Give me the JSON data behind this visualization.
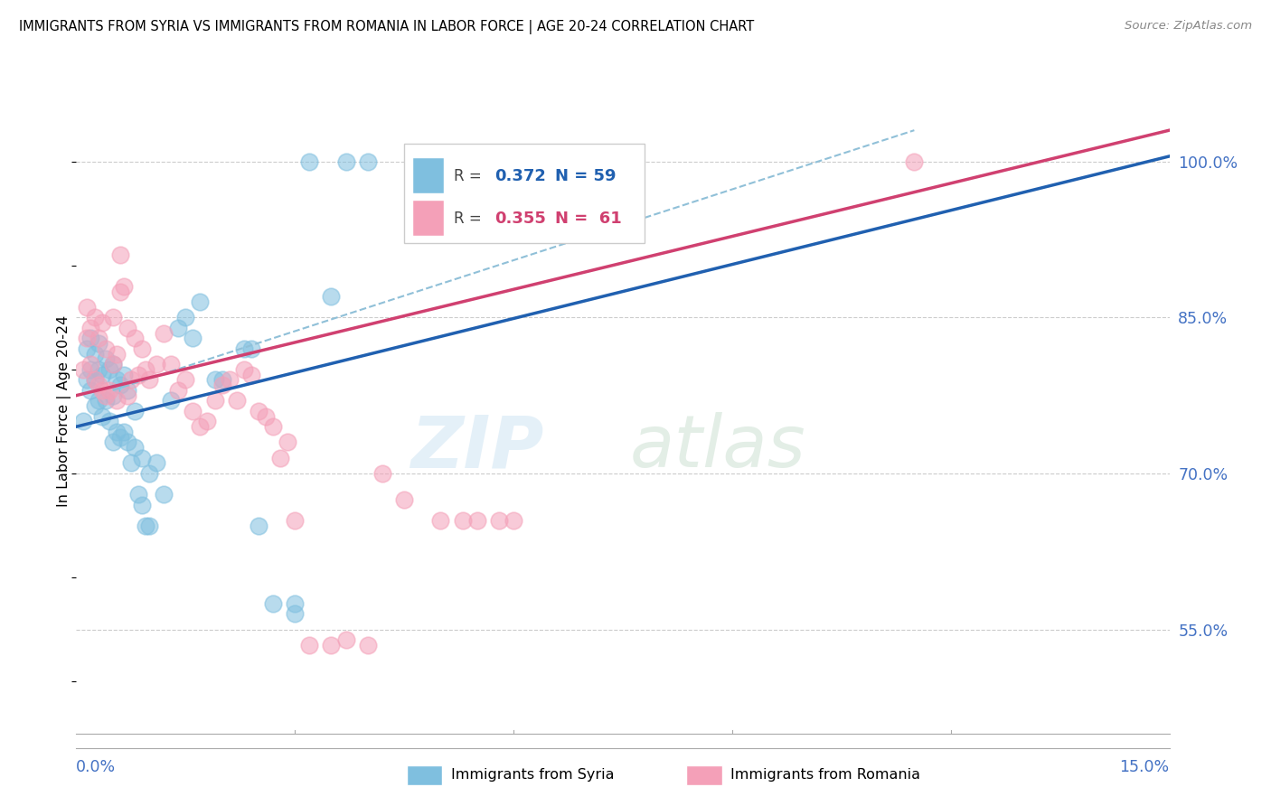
{
  "title": "IMMIGRANTS FROM SYRIA VS IMMIGRANTS FROM ROMANIA IN LABOR FORCE | AGE 20-24 CORRELATION CHART",
  "source": "Source: ZipAtlas.com",
  "ylabel": "In Labor Force | Age 20-24",
  "right_yticks": [
    55.0,
    70.0,
    85.0,
    100.0
  ],
  "xmin": 0.0,
  "xmax": 15.0,
  "ymin": 45.0,
  "ymax": 107.0,
  "R_syria": 0.372,
  "N_syria": 59,
  "R_romania": 0.355,
  "N_romania": 61,
  "color_syria": "#7fbfdf",
  "color_romania": "#f4a0b8",
  "color_syria_line": "#2060b0",
  "color_romania_line": "#d04070",
  "color_dashed": "#90c0d8",
  "legend_label_syria": "Immigrants from Syria",
  "legend_label_romania": "Immigrants from Romania",
  "axis_color": "#4472c4",
  "syria_line_x0": 0.0,
  "syria_line_y0": 74.5,
  "syria_line_x1": 15.0,
  "syria_line_y1": 100.5,
  "romania_line_x0": 0.0,
  "romania_line_y0": 77.5,
  "romania_line_x1": 15.0,
  "romania_line_y1": 103.0,
  "dash_line_x0": 0.5,
  "dash_line_y0": 78.0,
  "dash_line_x1": 11.5,
  "dash_line_y1": 103.0,
  "syria_x": [
    0.1,
    0.15,
    0.15,
    0.2,
    0.2,
    0.2,
    0.25,
    0.25,
    0.25,
    0.3,
    0.3,
    0.3,
    0.35,
    0.35,
    0.4,
    0.4,
    0.45,
    0.45,
    0.5,
    0.5,
    0.5,
    0.55,
    0.55,
    0.6,
    0.6,
    0.65,
    0.65,
    0.7,
    0.7,
    0.75,
    0.8,
    0.8,
    0.85,
    0.9,
    0.9,
    0.95,
    1.0,
    1.0,
    1.1,
    1.2,
    1.3,
    1.4,
    1.5,
    1.6,
    1.7,
    1.9,
    2.0,
    2.3,
    2.4,
    2.5,
    2.7,
    3.0,
    3.0,
    3.2,
    3.5,
    3.7,
    4.0,
    4.8,
    5.5
  ],
  "syria_y": [
    75.0,
    79.0,
    82.0,
    78.0,
    80.0,
    83.0,
    76.5,
    79.0,
    81.5,
    77.0,
    80.0,
    82.5,
    75.5,
    79.5,
    77.0,
    81.0,
    75.0,
    80.0,
    73.0,
    77.5,
    80.5,
    74.0,
    79.0,
    73.5,
    78.5,
    74.0,
    79.5,
    73.0,
    78.0,
    71.0,
    72.5,
    76.0,
    68.0,
    67.0,
    71.5,
    65.0,
    65.0,
    70.0,
    71.0,
    68.0,
    77.0,
    84.0,
    85.0,
    83.0,
    86.5,
    79.0,
    79.0,
    82.0,
    82.0,
    65.0,
    57.5,
    56.5,
    57.5,
    100.0,
    87.0,
    100.0,
    100.0,
    100.0,
    100.0
  ],
  "romania_x": [
    0.1,
    0.15,
    0.15,
    0.2,
    0.2,
    0.25,
    0.25,
    0.3,
    0.3,
    0.35,
    0.35,
    0.4,
    0.4,
    0.45,
    0.5,
    0.5,
    0.55,
    0.55,
    0.6,
    0.6,
    0.65,
    0.7,
    0.7,
    0.75,
    0.8,
    0.85,
    0.9,
    0.95,
    1.0,
    1.1,
    1.2,
    1.3,
    1.4,
    1.5,
    1.6,
    1.7,
    1.8,
    1.9,
    2.0,
    2.1,
    2.2,
    2.3,
    2.4,
    2.5,
    2.6,
    2.7,
    2.8,
    2.9,
    3.0,
    3.2,
    3.5,
    3.7,
    4.0,
    4.2,
    4.5,
    5.0,
    5.3,
    5.5,
    5.8,
    6.0,
    11.5
  ],
  "romania_y": [
    80.0,
    83.0,
    86.0,
    80.5,
    84.0,
    79.0,
    85.0,
    78.5,
    83.0,
    78.0,
    84.5,
    77.5,
    82.0,
    78.0,
    80.5,
    85.0,
    77.0,
    81.5,
    87.5,
    91.0,
    88.0,
    77.5,
    84.0,
    79.0,
    83.0,
    79.5,
    82.0,
    80.0,
    79.0,
    80.5,
    83.5,
    80.5,
    78.0,
    79.0,
    76.0,
    74.5,
    75.0,
    77.0,
    78.5,
    79.0,
    77.0,
    80.0,
    79.5,
    76.0,
    75.5,
    74.5,
    71.5,
    73.0,
    65.5,
    53.5,
    53.5,
    54.0,
    53.5,
    70.0,
    67.5,
    65.5,
    65.5,
    65.5,
    65.5,
    65.5,
    100.0
  ]
}
